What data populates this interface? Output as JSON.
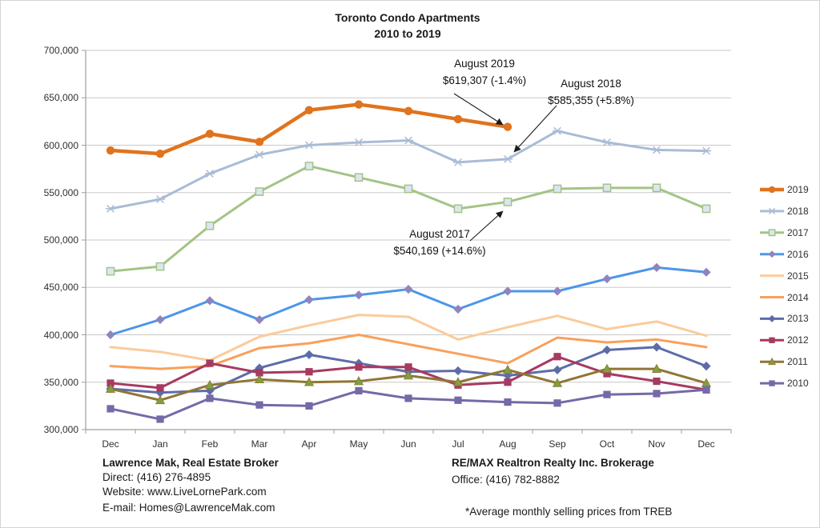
{
  "title": {
    "line1": "Toronto Condo Apartments",
    "line2": "2010 to 2019"
  },
  "chart_data": {
    "type": "line",
    "title": "Toronto Condo Apartments 2010 to 2019",
    "x_categories": [
      "Dec",
      "Jan",
      "Feb",
      "Mar",
      "Apr",
      "May",
      "Jun",
      "Jul",
      "Aug",
      "Sep",
      "Oct",
      "Nov",
      "Dec"
    ],
    "ylim": [
      300000,
      700000
    ],
    "ytick_step": 50000,
    "ytick_labels": [
      "300,000",
      "350,000",
      "400,000",
      "450,000",
      "500,000",
      "550,000",
      "600,000",
      "650,000",
      "700,000"
    ],
    "grid": true,
    "legend_position": "right",
    "series": [
      {
        "name": "2019",
        "color": "#E0731D",
        "marker": "circle",
        "line_width": 4.5,
        "values": [
          594500,
          591000,
          612000,
          603500,
          637000,
          643000,
          636000,
          627500,
          619307,
          null,
          null,
          null,
          null
        ]
      },
      {
        "name": "2018",
        "color": "#A9BCD6",
        "marker": "asterisk",
        "line_width": 3,
        "values": [
          533000,
          543000,
          570000,
          590000,
          600000,
          603000,
          605000,
          582000,
          585355,
          615000,
          603000,
          595000,
          594000
        ]
      },
      {
        "name": "2017",
        "color": "#A3C486",
        "marker": "square",
        "marker_fill": "#DCE6F2",
        "marker_stroke": "#A3C486",
        "line_width": 3,
        "values": [
          467000,
          472000,
          515000,
          551000,
          578000,
          566000,
          554000,
          533000,
          540169,
          554000,
          555000,
          555000,
          533000
        ]
      },
      {
        "name": "2016",
        "color": "#4D96E8",
        "marker": "diamond",
        "marker_fill": "#8E85BE",
        "line_width": 3,
        "values": [
          400000,
          416000,
          436000,
          416000,
          437000,
          442000,
          448000,
          427000,
          446000,
          446000,
          459000,
          471000,
          466000
        ]
      },
      {
        "name": "2015",
        "color": "#FBCB9B",
        "marker": "none",
        "line_width": 3,
        "values": [
          387000,
          382000,
          373000,
          398000,
          410000,
          421000,
          419000,
          395000,
          408000,
          420000,
          406000,
          414000,
          399000
        ]
      },
      {
        "name": "2014",
        "color": "#F9A05B",
        "marker": "none",
        "line_width": 3,
        "values": [
          367000,
          364000,
          367000,
          386000,
          391000,
          400000,
          390000,
          380000,
          370000,
          397000,
          392000,
          395000,
          387000
        ]
      },
      {
        "name": "2013",
        "color": "#5D6CA8",
        "marker": "diamond",
        "line_width": 3,
        "values": [
          343000,
          339000,
          341000,
          365000,
          379000,
          370000,
          361000,
          362000,
          357000,
          363000,
          384000,
          387000,
          367000
        ]
      },
      {
        "name": "2012",
        "color": "#A63A60",
        "marker": "square",
        "line_width": 3,
        "values": [
          349000,
          344000,
          370000,
          360000,
          361000,
          366000,
          366000,
          347000,
          350000,
          377000,
          359000,
          351000,
          342000
        ]
      },
      {
        "name": "2011",
        "color": "#8F7634",
        "marker": "triangle",
        "marker_fill": "#7EA13D",
        "line_width": 3,
        "values": [
          343000,
          331000,
          347000,
          353000,
          350000,
          351000,
          357000,
          350000,
          363000,
          349000,
          364000,
          364000,
          349000
        ]
      },
      {
        "name": "2010",
        "color": "#7569A8",
        "marker": "square",
        "line_width": 3,
        "values": [
          322000,
          311000,
          333000,
          326000,
          325000,
          341000,
          333000,
          331000,
          329000,
          328000,
          337000,
          338000,
          342000
        ]
      }
    ],
    "annotations": [
      {
        "line1": "August 2019",
        "line2": "$619,307 (-1.4%)",
        "series": "2019",
        "month_index": 8
      },
      {
        "line1": "August 2018",
        "line2": "$585,355 (+5.8%)",
        "series": "2018",
        "month_index": 8
      },
      {
        "line1": "August 2017",
        "line2": "$540,169 (+14.6%)",
        "series": "2017",
        "month_index": 8
      }
    ]
  },
  "footer": {
    "left": {
      "name": "Lawrence Mak, Real Estate Broker",
      "direct": "Direct:  (416) 276-4895",
      "website": "Website:  www.LiveLornePark.com",
      "email": "E-mail:  Homes@LawrenceMak.com"
    },
    "right": {
      "brokerage": "RE/MAX Realtron Realty Inc. Brokerage",
      "office": "Office: (416) 782-8882",
      "note": "*Average monthly selling prices from TREB"
    }
  }
}
